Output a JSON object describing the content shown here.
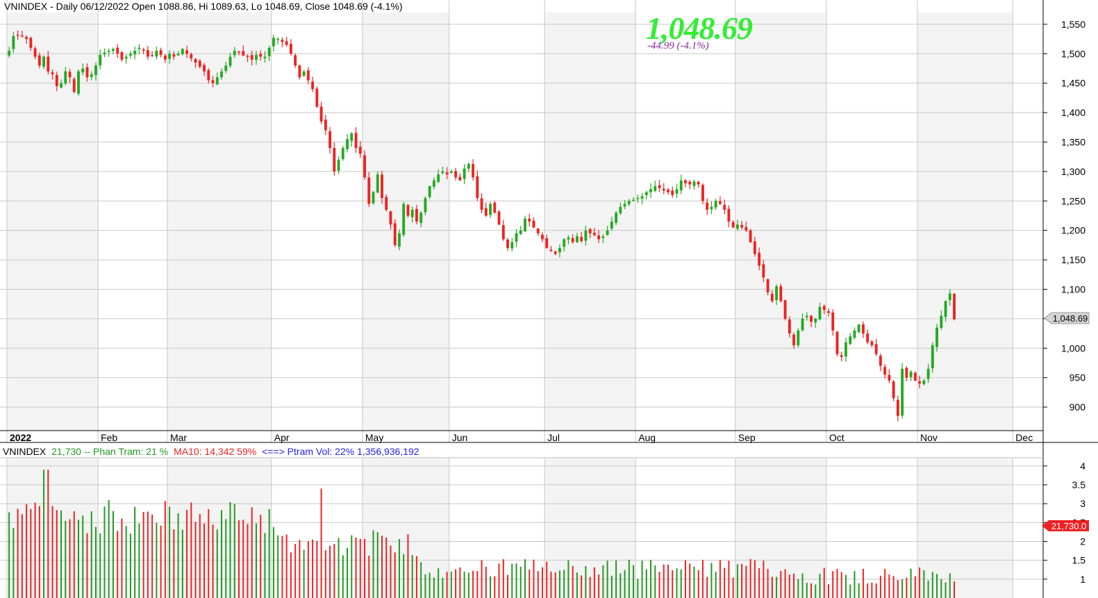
{
  "header": {
    "title_text": "VNINDEX - Daily 06/12/2022 Open 1088.86, Hi 1089.63, Lo 1048.69, Close 1048.69 (-4.1%)",
    "big_close": "1,048.69",
    "change_text": "-44.99  (-4.1%)"
  },
  "volume_header": {
    "symbol": "VNINDEX",
    "vol_text": "21,730 -- Phan Tram:  21 %",
    "ma_text": "MA10:  14,342  59%",
    "ptram_text": "<==> Ptram Vol:  22%  1,356,936,192"
  },
  "price_badge": "1,048.69",
  "volume_badge": "21,730.0",
  "colors": {
    "up": "#22aa22",
    "down": "#ee2222",
    "grid": "#c8c8c8",
    "shade": "#f3f3f3",
    "title": "#000000",
    "big": "#33ee33",
    "chg": "#8b2c9a",
    "vol_green": "#229922",
    "vol_red": "#ee2222",
    "vol_blue": "#2222ee"
  },
  "chart_data": [
    {
      "type": "candlestick",
      "ylim": [
        860,
        1570
      ],
      "yticks": [
        900,
        950,
        1000,
        1050,
        1100,
        1150,
        1200,
        1250,
        1300,
        1350,
        1400,
        1450,
        1500,
        1550
      ],
      "ytick_labels": [
        "900",
        "950",
        "1,000",
        "",
        "1,100",
        "1,150",
        "1,200",
        "1,250",
        "1,300",
        "1,350",
        "1,400",
        "1,450",
        "1,500",
        "1,550"
      ],
      "x_labels": [
        "2022",
        "Feb",
        "Mar",
        "Apr",
        "May",
        "Jun",
        "Jul",
        "Aug",
        "Sep",
        "Oct",
        "Nov",
        "Dec"
      ],
      "x_label_index": [
        0,
        21,
        37,
        61,
        82,
        102,
        124,
        145,
        168,
        189,
        210,
        232
      ],
      "bars_total": 239,
      "close": [
        1505,
        1530,
        1532,
        1530,
        1525,
        1510,
        1495,
        1480,
        1495,
        1470,
        1465,
        1445,
        1450,
        1470,
        1460,
        1435,
        1470,
        1475,
        1460,
        1465,
        1480,
        1498,
        1502,
        1505,
        1508,
        1500,
        1490,
        1495,
        1500,
        1505,
        1510,
        1505,
        1495,
        1497,
        1505,
        1498,
        1490,
        1500,
        1495,
        1500,
        1508,
        1500,
        1492,
        1485,
        1478,
        1470,
        1455,
        1450,
        1460,
        1470,
        1480,
        1495,
        1505,
        1502,
        1497,
        1495,
        1490,
        1498,
        1495,
        1495,
        1510,
        1527,
        1525,
        1520,
        1515,
        1500,
        1480,
        1460,
        1470,
        1455,
        1440,
        1410,
        1385,
        1370,
        1340,
        1300,
        1320,
        1340,
        1355,
        1365,
        1340,
        1330,
        1290,
        1245,
        1265,
        1295,
        1255,
        1235,
        1210,
        1175,
        1195,
        1245,
        1225,
        1235,
        1215,
        1230,
        1255,
        1275,
        1285,
        1295,
        1300,
        1295,
        1300,
        1290,
        1285,
        1305,
        1313,
        1290,
        1255,
        1235,
        1225,
        1245,
        1230,
        1210,
        1185,
        1170,
        1180,
        1195,
        1200,
        1220,
        1215,
        1205,
        1195,
        1185,
        1170,
        1165,
        1160,
        1170,
        1185,
        1188,
        1180,
        1190,
        1182,
        1200,
        1195,
        1192,
        1185,
        1190,
        1200,
        1215,
        1230,
        1240,
        1245,
        1250,
        1252,
        1255,
        1258,
        1265,
        1270,
        1275,
        1272,
        1268,
        1265,
        1260,
        1270,
        1285,
        1280,
        1278,
        1283,
        1278,
        1250,
        1235,
        1240,
        1250,
        1245,
        1235,
        1215,
        1205,
        1210,
        1205,
        1200,
        1180,
        1160,
        1140,
        1120,
        1095,
        1080,
        1105,
        1080,
        1050,
        1025,
        1005,
        1030,
        1050,
        1055,
        1045,
        1050,
        1070,
        1065,
        1060,
        1030,
        990,
        985,
        1010,
        1020,
        1030,
        1040,
        1025,
        1010,
        1005,
        990,
        970,
        955,
        945,
        915,
        885,
        965,
        950,
        960,
        945,
        940,
        945,
        965,
        1005,
        1035,
        1055,
        1080,
        1093,
        1049
      ],
      "volume_ylim": [
        0.5,
        4.2
      ],
      "volume_yticks": [
        1,
        1.5,
        2,
        2.5,
        3,
        3.5,
        4
      ],
      "volume_ytick_labels": [
        "1",
        "1.5",
        "2",
        "2.5",
        "3",
        "3.5",
        "4"
      ]
    }
  ]
}
